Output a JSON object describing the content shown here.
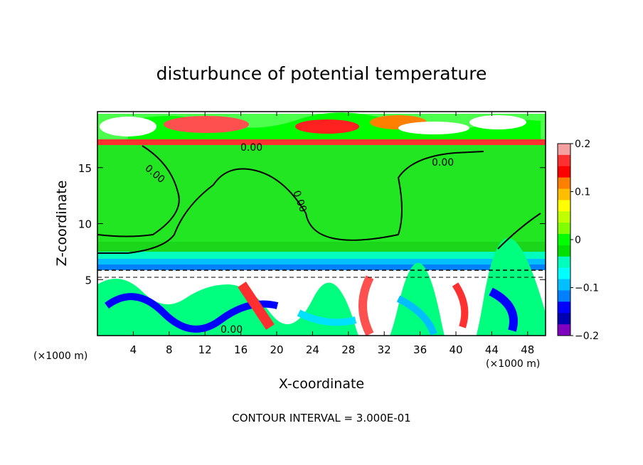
{
  "chart_data": {
    "type": "heatmap",
    "title": "disturbunce of potential temperature",
    "xlabel": "X-coordinate",
    "ylabel": "Z-coordinate",
    "x_unit": "(×1000 m)",
    "x_unit_right": "(×1000 m)",
    "xlim": [
      0,
      50
    ],
    "ylim": [
      0,
      20
    ],
    "x_ticks": [
      "4",
      "8",
      "12",
      "16",
      "20",
      "24",
      "28",
      "32",
      "36",
      "40",
      "44",
      "48"
    ],
    "y_ticks": [
      "5",
      "10",
      "15"
    ],
    "colorbar": {
      "range": [
        -0.2,
        0.2
      ],
      "tick_labels": [
        "0.2",
        "0.1",
        "0",
        "−0.1",
        "−0.2"
      ],
      "colors": [
        "#f5a0a0",
        "#ff3030",
        "#ff0000",
        "#ff7f00",
        "#ffbf00",
        "#ffff00",
        "#bfff00",
        "#7fff00",
        "#00ff00",
        "#00e000",
        "#00ffbf",
        "#00ffff",
        "#00bfff",
        "#007fff",
        "#0000ff",
        "#0000b0",
        "#8000c0"
      ]
    },
    "contour_labels": [
      "0.00",
      "0.00",
      "0.00",
      "0.00",
      "0.00"
    ],
    "contour_interval_text": "CONTOUR INTERVAL = 3.000E-01"
  }
}
